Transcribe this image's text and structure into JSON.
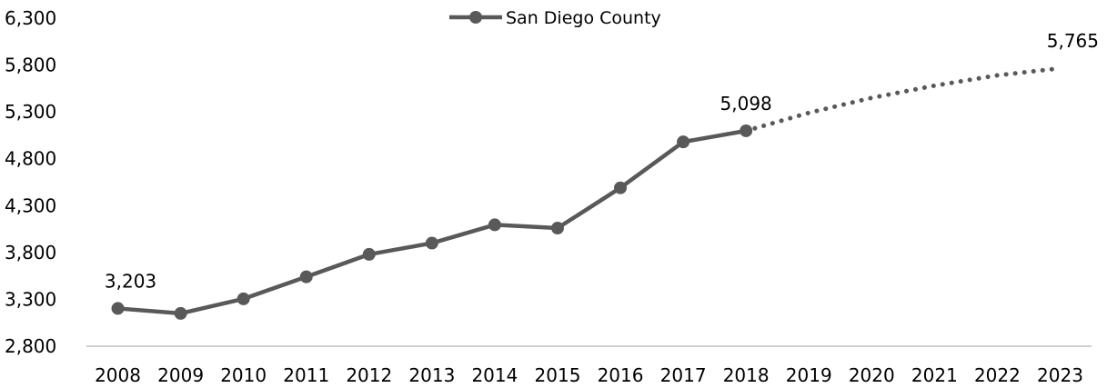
{
  "chart_data": {
    "type": "line",
    "title": "",
    "xlabel": "",
    "ylabel": "",
    "ylim": [
      2800,
      6300
    ],
    "yticks": [
      "6,300",
      "5,800",
      "5,300",
      "4,800",
      "4,300",
      "3,800",
      "3,300",
      "2,800"
    ],
    "ytick_values": [
      6300,
      5800,
      5300,
      4800,
      4300,
      3800,
      3300,
      2800
    ],
    "categories": [
      "2008",
      "2009",
      "2010",
      "2011",
      "2012",
      "2013",
      "2014",
      "2015",
      "2016",
      "2017",
      "2018",
      "2019",
      "2020",
      "2021",
      "2022",
      "2023"
    ],
    "series": [
      {
        "name": "San Diego County",
        "style": "solid-with-markers",
        "x": [
          "2008",
          "2009",
          "2010",
          "2011",
          "2012",
          "2013",
          "2014",
          "2015",
          "2016",
          "2017",
          "2018"
        ],
        "values": [
          3203,
          3150,
          3305,
          3540,
          3780,
          3900,
          4095,
          4060,
          4490,
          4980,
          5098
        ]
      },
      {
        "style": "dotted-projection",
        "x": [
          "2018",
          "2019",
          "2020",
          "2021",
          "2022",
          "2023"
        ],
        "values": [
          5098,
          5290,
          5450,
          5580,
          5690,
          5765
        ]
      }
    ],
    "data_labels": [
      {
        "x": "2008",
        "value": 3203,
        "text": "3,203"
      },
      {
        "x": "2018",
        "value": 5098,
        "text": "5,098"
      },
      {
        "x": "2023",
        "value": 5765,
        "text": "5,765"
      }
    ],
    "legend": {
      "position": "top",
      "label": "San Diego County"
    },
    "grid": false,
    "colors": {
      "line": "#595959",
      "axis": "#bfbfbf"
    }
  }
}
